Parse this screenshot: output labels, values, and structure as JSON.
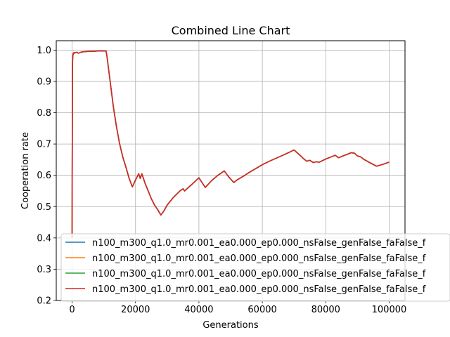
{
  "chart_data": {
    "type": "line",
    "title": "Combined Line Chart",
    "xlabel": "Generations",
    "ylabel": "Cooperation rate",
    "xlim": [
      -5000,
      105000
    ],
    "ylim": [
      0.2,
      1.03
    ],
    "xticks": [
      0,
      20000,
      40000,
      60000,
      80000,
      100000
    ],
    "xtick_labels": [
      "0",
      "20000",
      "40000",
      "60000",
      "80000",
      "100000"
    ],
    "yticks": [
      0.2,
      0.3,
      0.4,
      0.5,
      0.6,
      0.7,
      0.8,
      0.9,
      1.0
    ],
    "ytick_labels": [
      "0.2",
      "0.3",
      "0.4",
      "0.5",
      "0.6",
      "0.7",
      "0.8",
      "0.9",
      "1.0"
    ],
    "grid": true,
    "legend_position": "lower-right",
    "series": [
      {
        "name": "n100_m300_q1.0_mr0.001_ea0.000_ep0.000_nsFalse_genFalse_faFalse_f",
        "color": "#1f77b4",
        "x": [
          0,
          100,
          200,
          400,
          600,
          800,
          1000,
          1500,
          2000,
          2500,
          3000,
          4000,
          5000,
          6000,
          8000,
          10000,
          10700,
          11000,
          12000,
          13000,
          14000,
          15000,
          16000,
          17000,
          18000,
          19000,
          20000,
          21000,
          21500,
          22000,
          23000,
          24000,
          25000,
          26000,
          27000,
          28000,
          29000,
          30000,
          32000,
          34000,
          35000,
          35500,
          36000,
          38000,
          40000,
          42000,
          44000,
          46000,
          48000,
          49000,
          50000,
          51000,
          52000,
          54000,
          56000,
          58000,
          60000,
          62000,
          64000,
          66000,
          68000,
          69000,
          70000,
          71000,
          72000,
          73000,
          74000,
          75000,
          76000,
          77000,
          78000,
          80000,
          82000,
          83000,
          84000,
          86000,
          88000,
          89000,
          90000,
          91000,
          92000,
          94000,
          96000,
          98000,
          100000
        ],
        "y": [
          0.4,
          0.95,
          0.98,
          0.99,
          0.992,
          0.99,
          0.992,
          0.993,
          0.99,
          0.992,
          0.994,
          0.995,
          0.996,
          0.996,
          0.997,
          0.997,
          0.997,
          0.98,
          0.9,
          0.82,
          0.755,
          0.7,
          0.658,
          0.625,
          0.59,
          0.563,
          0.585,
          0.605,
          0.59,
          0.605,
          0.575,
          0.55,
          0.525,
          0.505,
          0.49,
          0.473,
          0.487,
          0.505,
          0.53,
          0.55,
          0.557,
          0.55,
          0.555,
          0.573,
          0.592,
          0.561,
          0.583,
          0.6,
          0.614,
          0.6,
          0.588,
          0.577,
          0.585,
          0.597,
          0.61,
          0.622,
          0.634,
          0.644,
          0.653,
          0.662,
          0.671,
          0.676,
          0.681,
          0.672,
          0.663,
          0.653,
          0.645,
          0.648,
          0.641,
          0.643,
          0.642,
          0.652,
          0.66,
          0.664,
          0.656,
          0.664,
          0.672,
          0.671,
          0.662,
          0.659,
          0.651,
          0.64,
          0.629,
          0.635,
          0.642
        ]
      },
      {
        "name": "n100_m300_q1.0_mr0.001_ea0.000_ep0.000_nsFalse_genFalse_faFalse_f",
        "color": "#ff7f0e",
        "x": [
          0,
          100,
          200,
          400,
          600,
          800,
          1000,
          1500,
          2000,
          2500,
          3000,
          4000,
          5000,
          6000,
          8000,
          10000,
          10700,
          11000,
          12000,
          13000,
          14000,
          15000,
          16000,
          17000,
          18000,
          19000,
          20000,
          21000,
          21500,
          22000,
          23000,
          24000,
          25000,
          26000,
          27000,
          28000,
          29000,
          30000,
          32000,
          34000,
          35000,
          35500,
          36000,
          38000,
          40000,
          42000,
          44000,
          46000,
          48000,
          49000,
          50000,
          51000,
          52000,
          54000,
          56000,
          58000,
          60000,
          62000,
          64000,
          66000,
          68000,
          69000,
          70000,
          71000,
          72000,
          73000,
          74000,
          75000,
          76000,
          77000,
          78000,
          80000,
          82000,
          83000,
          84000,
          86000,
          88000,
          89000,
          90000,
          91000,
          92000,
          94000,
          96000,
          98000,
          100000
        ],
        "y": [
          0.4,
          0.95,
          0.98,
          0.99,
          0.992,
          0.99,
          0.992,
          0.993,
          0.99,
          0.992,
          0.994,
          0.995,
          0.996,
          0.996,
          0.997,
          0.997,
          0.997,
          0.98,
          0.9,
          0.82,
          0.755,
          0.7,
          0.658,
          0.625,
          0.59,
          0.563,
          0.585,
          0.605,
          0.59,
          0.605,
          0.575,
          0.55,
          0.525,
          0.505,
          0.49,
          0.473,
          0.487,
          0.505,
          0.53,
          0.55,
          0.557,
          0.55,
          0.555,
          0.573,
          0.592,
          0.561,
          0.583,
          0.6,
          0.614,
          0.6,
          0.588,
          0.577,
          0.585,
          0.597,
          0.61,
          0.622,
          0.634,
          0.644,
          0.653,
          0.662,
          0.671,
          0.676,
          0.681,
          0.672,
          0.663,
          0.653,
          0.645,
          0.648,
          0.641,
          0.643,
          0.642,
          0.652,
          0.66,
          0.664,
          0.656,
          0.664,
          0.672,
          0.671,
          0.662,
          0.659,
          0.651,
          0.64,
          0.629,
          0.635,
          0.642
        ]
      },
      {
        "name": "n100_m300_q1.0_mr0.001_ea0.000_ep0.000_nsFalse_genFalse_faFalse_f",
        "color": "#2ca02c",
        "x": [
          0,
          100,
          200,
          400,
          600,
          800,
          1000,
          1500,
          2000,
          2500,
          3000,
          4000,
          5000,
          6000,
          8000,
          10000,
          10700,
          11000,
          12000,
          13000,
          14000,
          15000,
          16000,
          17000,
          18000,
          19000,
          20000,
          21000,
          21500,
          22000,
          23000,
          24000,
          25000,
          26000,
          27000,
          28000,
          29000,
          30000,
          32000,
          34000,
          35000,
          35500,
          36000,
          38000,
          40000,
          42000,
          44000,
          46000,
          48000,
          49000,
          50000,
          51000,
          52000,
          54000,
          56000,
          58000,
          60000,
          62000,
          64000,
          66000,
          68000,
          69000,
          70000,
          71000,
          72000,
          73000,
          74000,
          75000,
          76000,
          77000,
          78000,
          80000,
          82000,
          83000,
          84000,
          86000,
          88000,
          89000,
          90000,
          91000,
          92000,
          94000,
          96000,
          98000,
          100000
        ],
        "y": [
          0.4,
          0.95,
          0.98,
          0.99,
          0.992,
          0.99,
          0.992,
          0.993,
          0.99,
          0.992,
          0.994,
          0.995,
          0.996,
          0.996,
          0.997,
          0.997,
          0.997,
          0.98,
          0.9,
          0.82,
          0.755,
          0.7,
          0.658,
          0.625,
          0.59,
          0.563,
          0.585,
          0.605,
          0.59,
          0.605,
          0.575,
          0.55,
          0.525,
          0.505,
          0.49,
          0.473,
          0.487,
          0.505,
          0.53,
          0.55,
          0.557,
          0.55,
          0.555,
          0.573,
          0.592,
          0.561,
          0.583,
          0.6,
          0.614,
          0.6,
          0.588,
          0.577,
          0.585,
          0.597,
          0.61,
          0.622,
          0.634,
          0.644,
          0.653,
          0.662,
          0.671,
          0.676,
          0.681,
          0.672,
          0.663,
          0.653,
          0.645,
          0.648,
          0.641,
          0.643,
          0.642,
          0.652,
          0.66,
          0.664,
          0.656,
          0.664,
          0.672,
          0.671,
          0.662,
          0.659,
          0.651,
          0.64,
          0.629,
          0.635,
          0.642
        ]
      },
      {
        "name": "n100_m300_q1.0_mr0.001_ea0.000_ep0.000_nsFalse_genFalse_faFalse_f",
        "color": "#d62728",
        "x": [
          0,
          100,
          200,
          400,
          600,
          800,
          1000,
          1500,
          2000,
          2500,
          3000,
          4000,
          5000,
          6000,
          8000,
          10000,
          10700,
          11000,
          12000,
          13000,
          14000,
          15000,
          16000,
          17000,
          18000,
          19000,
          20000,
          21000,
          21500,
          22000,
          23000,
          24000,
          25000,
          26000,
          27000,
          28000,
          29000,
          30000,
          32000,
          34000,
          35000,
          35500,
          36000,
          38000,
          40000,
          42000,
          44000,
          46000,
          48000,
          49000,
          50000,
          51000,
          52000,
          54000,
          56000,
          58000,
          60000,
          62000,
          64000,
          66000,
          68000,
          69000,
          70000,
          71000,
          72000,
          73000,
          74000,
          75000,
          76000,
          77000,
          78000,
          80000,
          82000,
          83000,
          84000,
          86000,
          88000,
          89000,
          90000,
          91000,
          92000,
          94000,
          96000,
          98000,
          100000
        ],
        "y": [
          0.4,
          0.95,
          0.98,
          0.99,
          0.992,
          0.99,
          0.992,
          0.993,
          0.99,
          0.992,
          0.994,
          0.995,
          0.996,
          0.996,
          0.997,
          0.997,
          0.997,
          0.98,
          0.9,
          0.82,
          0.755,
          0.7,
          0.658,
          0.625,
          0.59,
          0.563,
          0.585,
          0.605,
          0.59,
          0.605,
          0.575,
          0.55,
          0.525,
          0.505,
          0.49,
          0.473,
          0.487,
          0.505,
          0.53,
          0.55,
          0.557,
          0.55,
          0.555,
          0.573,
          0.592,
          0.561,
          0.583,
          0.6,
          0.614,
          0.6,
          0.588,
          0.577,
          0.585,
          0.597,
          0.61,
          0.622,
          0.634,
          0.644,
          0.653,
          0.662,
          0.671,
          0.676,
          0.681,
          0.672,
          0.663,
          0.653,
          0.645,
          0.648,
          0.641,
          0.643,
          0.642,
          0.652,
          0.66,
          0.664,
          0.656,
          0.664,
          0.672,
          0.671,
          0.662,
          0.659,
          0.651,
          0.64,
          0.629,
          0.635,
          0.642
        ]
      }
    ]
  }
}
